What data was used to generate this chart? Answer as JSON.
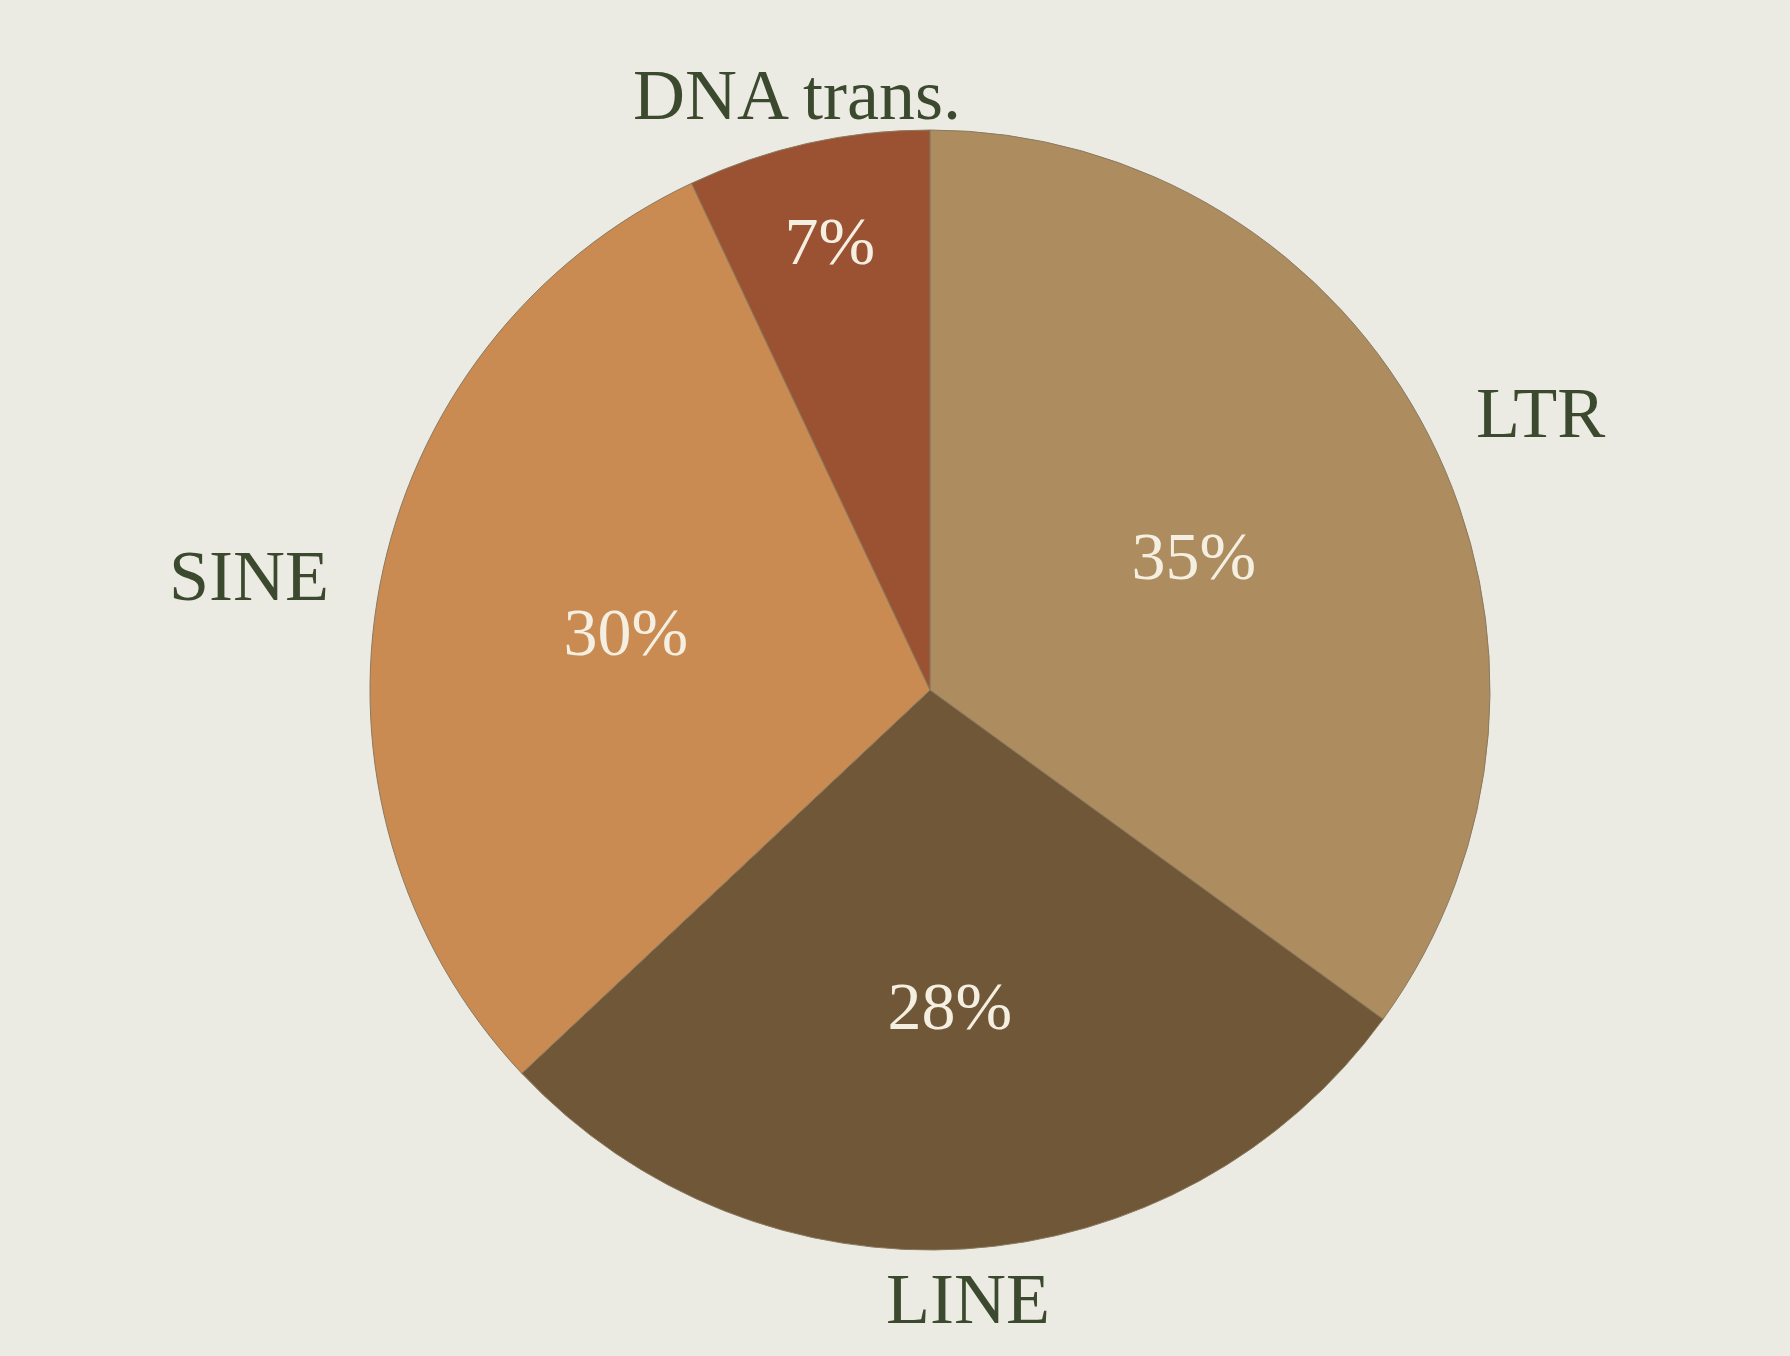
{
  "chart_data": {
    "type": "pie",
    "categories": [
      "LTR",
      "LINE",
      "SINE",
      "DNA trans."
    ],
    "values": [
      35,
      28,
      30,
      7
    ],
    "value_labels": [
      "35%",
      "28%",
      "30%",
      "7%"
    ],
    "colors": [
      "#ad8c5f",
      "#6f5737",
      "#c98b51",
      "#9b5232"
    ],
    "legend": false
  }
}
